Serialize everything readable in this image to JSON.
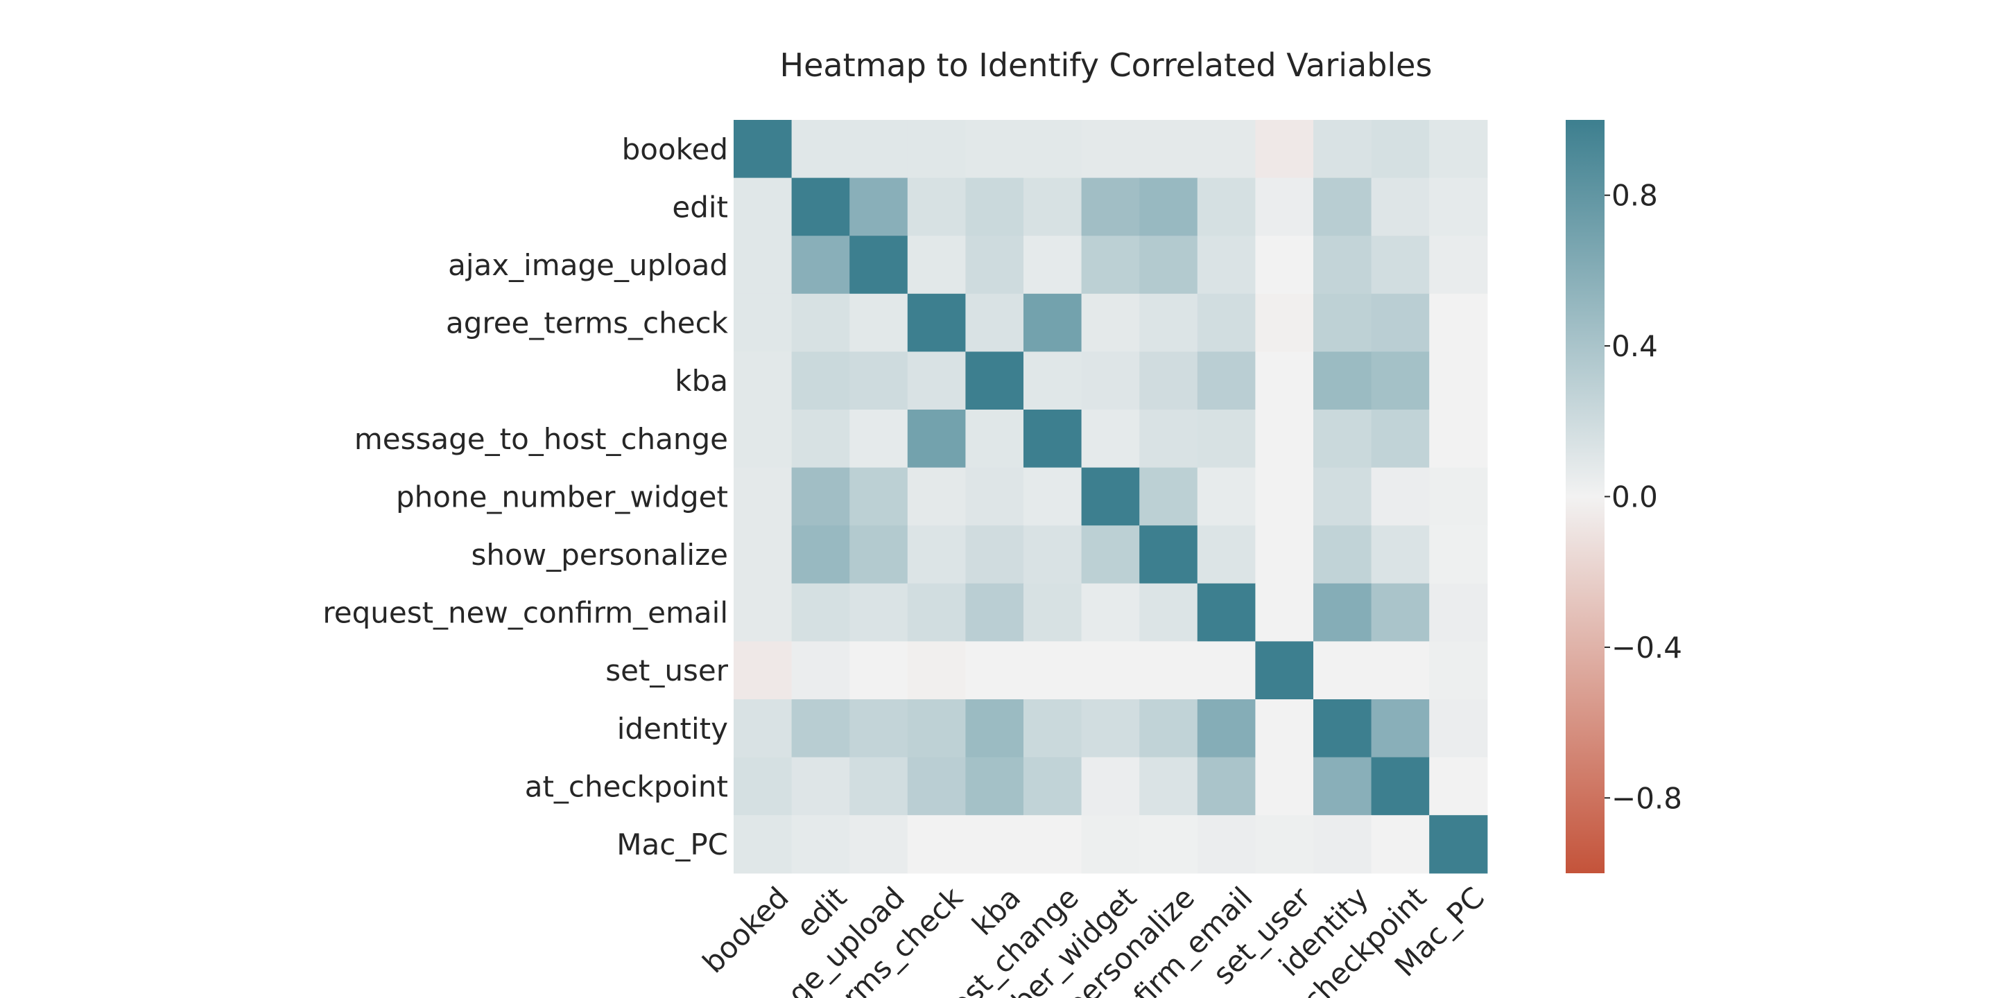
{
  "chart_data": {
    "type": "heatmap",
    "title": "Heatmap to Identify Correlated Variables",
    "variables": [
      "booked",
      "edit",
      "ajax_image_upload",
      "agree_terms_check",
      "kba",
      "message_to_host_change",
      "phone_number_widget",
      "show_personalize",
      "request_new_confirm_email",
      "set_user",
      "identity",
      "at_checkpoint",
      "Mac_PC"
    ],
    "x_tick_labels_visible": [
      "booked",
      "edit",
      "age_upload",
      "rms_check",
      "kba",
      "ost_change",
      "ber_widget",
      "personalize",
      "nfirm_email",
      "set_user",
      "identity",
      "checkpoint",
      "Mac_PC"
    ],
    "matrix": [
      [
        1.0,
        0.1,
        0.1,
        0.1,
        0.09,
        0.09,
        0.08,
        0.08,
        0.08,
        -0.06,
        0.14,
        0.16,
        0.1
      ],
      [
        0.1,
        1.0,
        0.58,
        0.15,
        0.22,
        0.15,
        0.45,
        0.5,
        0.16,
        0.04,
        0.32,
        0.11,
        0.07
      ],
      [
        0.1,
        0.58,
        1.0,
        0.09,
        0.2,
        0.07,
        0.3,
        0.35,
        0.13,
        0.0,
        0.26,
        0.18,
        0.05
      ],
      [
        0.1,
        0.15,
        0.09,
        1.0,
        0.14,
        0.7,
        0.08,
        0.12,
        0.18,
        -0.02,
        0.29,
        0.31,
        0.0
      ],
      [
        0.09,
        0.22,
        0.2,
        0.14,
        1.0,
        0.1,
        0.11,
        0.19,
        0.31,
        0.0,
        0.48,
        0.43,
        0.0
      ],
      [
        0.09,
        0.15,
        0.07,
        0.7,
        0.1,
        1.0,
        0.07,
        0.14,
        0.15,
        0.0,
        0.22,
        0.27,
        0.0
      ],
      [
        0.08,
        0.45,
        0.3,
        0.08,
        0.11,
        0.07,
        1.0,
        0.3,
        0.06,
        0.0,
        0.18,
        0.04,
        0.03
      ],
      [
        0.08,
        0.5,
        0.35,
        0.12,
        0.19,
        0.14,
        0.3,
        1.0,
        0.12,
        0.0,
        0.27,
        0.13,
        0.02
      ],
      [
        0.08,
        0.16,
        0.13,
        0.18,
        0.31,
        0.15,
        0.06,
        0.12,
        1.0,
        0.0,
        0.6,
        0.4,
        0.04
      ],
      [
        -0.06,
        0.04,
        0.0,
        -0.02,
        0.0,
        0.0,
        0.0,
        0.0,
        0.0,
        1.0,
        0.0,
        0.0,
        0.03
      ],
      [
        0.14,
        0.32,
        0.26,
        0.29,
        0.48,
        0.22,
        0.18,
        0.27,
        0.6,
        0.0,
        1.0,
        0.58,
        0.04
      ],
      [
        0.16,
        0.11,
        0.18,
        0.31,
        0.43,
        0.27,
        0.04,
        0.13,
        0.4,
        0.0,
        0.58,
        1.0,
        0.0
      ],
      [
        0.1,
        0.07,
        0.05,
        0.0,
        0.0,
        0.0,
        0.03,
        0.02,
        0.04,
        0.03,
        0.04,
        0.0,
        1.0
      ]
    ],
    "value_range": [
      -1,
      1
    ],
    "colorbar": {
      "ticks": [
        0.8,
        0.4,
        0.0,
        -0.4,
        -0.8
      ],
      "tick_labels": [
        "0.8",
        "0.4",
        "0.0",
        "−0.4",
        "−0.8"
      ]
    },
    "colors": {
      "negative": "#c4533a",
      "neutral": "#f2f2f2",
      "positive": "#3d7f8f"
    },
    "grid": false
  }
}
